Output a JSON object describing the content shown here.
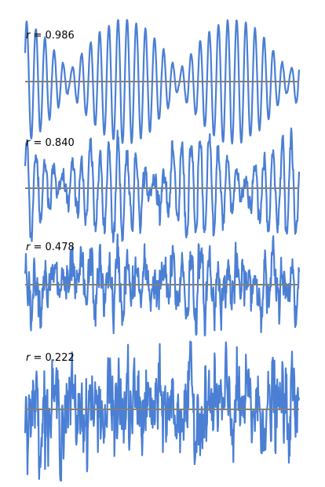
{
  "chart_data": [
    {
      "type": "line",
      "annotation": {
        "symbol": "r",
        "equals": "=",
        "value": "0.986"
      },
      "x_range": [
        0,
        1
      ],
      "y_range": [
        -1,
        1
      ],
      "baseline": 0,
      "series_color": "#4a7fd4",
      "baseline_color": "#808080",
      "signal": {
        "carrier_cycles": 30,
        "envelope_cycles": 2.5,
        "noise": 0.03
      }
    },
    {
      "type": "line",
      "annotation": {
        "symbol": "r",
        "equals": "=",
        "value": "0.840"
      },
      "x_range": [
        0,
        1
      ],
      "y_range": [
        -1,
        1
      ],
      "baseline": 0,
      "series_color": "#4a7fd4",
      "baseline_color": "#808080",
      "signal": {
        "carrier_cycles": 30,
        "envelope_cycles": 3,
        "noise": 0.25
      }
    },
    {
      "type": "line",
      "annotation": {
        "symbol": "r",
        "equals": "=",
        "value": "0.478"
      },
      "x_range": [
        0,
        1
      ],
      "y_range": [
        -1,
        1
      ],
      "baseline": 0,
      "series_color": "#4a7fd4",
      "baseline_color": "#808080",
      "signal": {
        "carrier_cycles": 30,
        "envelope_cycles": 3,
        "noise": 0.55
      }
    },
    {
      "type": "line",
      "annotation": {
        "symbol": "r",
        "equals": "=",
        "value": "0.222"
      },
      "x_range": [
        0,
        1
      ],
      "y_range": [
        -1,
        1
      ],
      "baseline": 0,
      "series_color": "#4a7fd4",
      "baseline_color": "#808080",
      "signal": {
        "carrier_cycles": 30,
        "envelope_cycles": 3,
        "noise": 0.8
      }
    }
  ]
}
